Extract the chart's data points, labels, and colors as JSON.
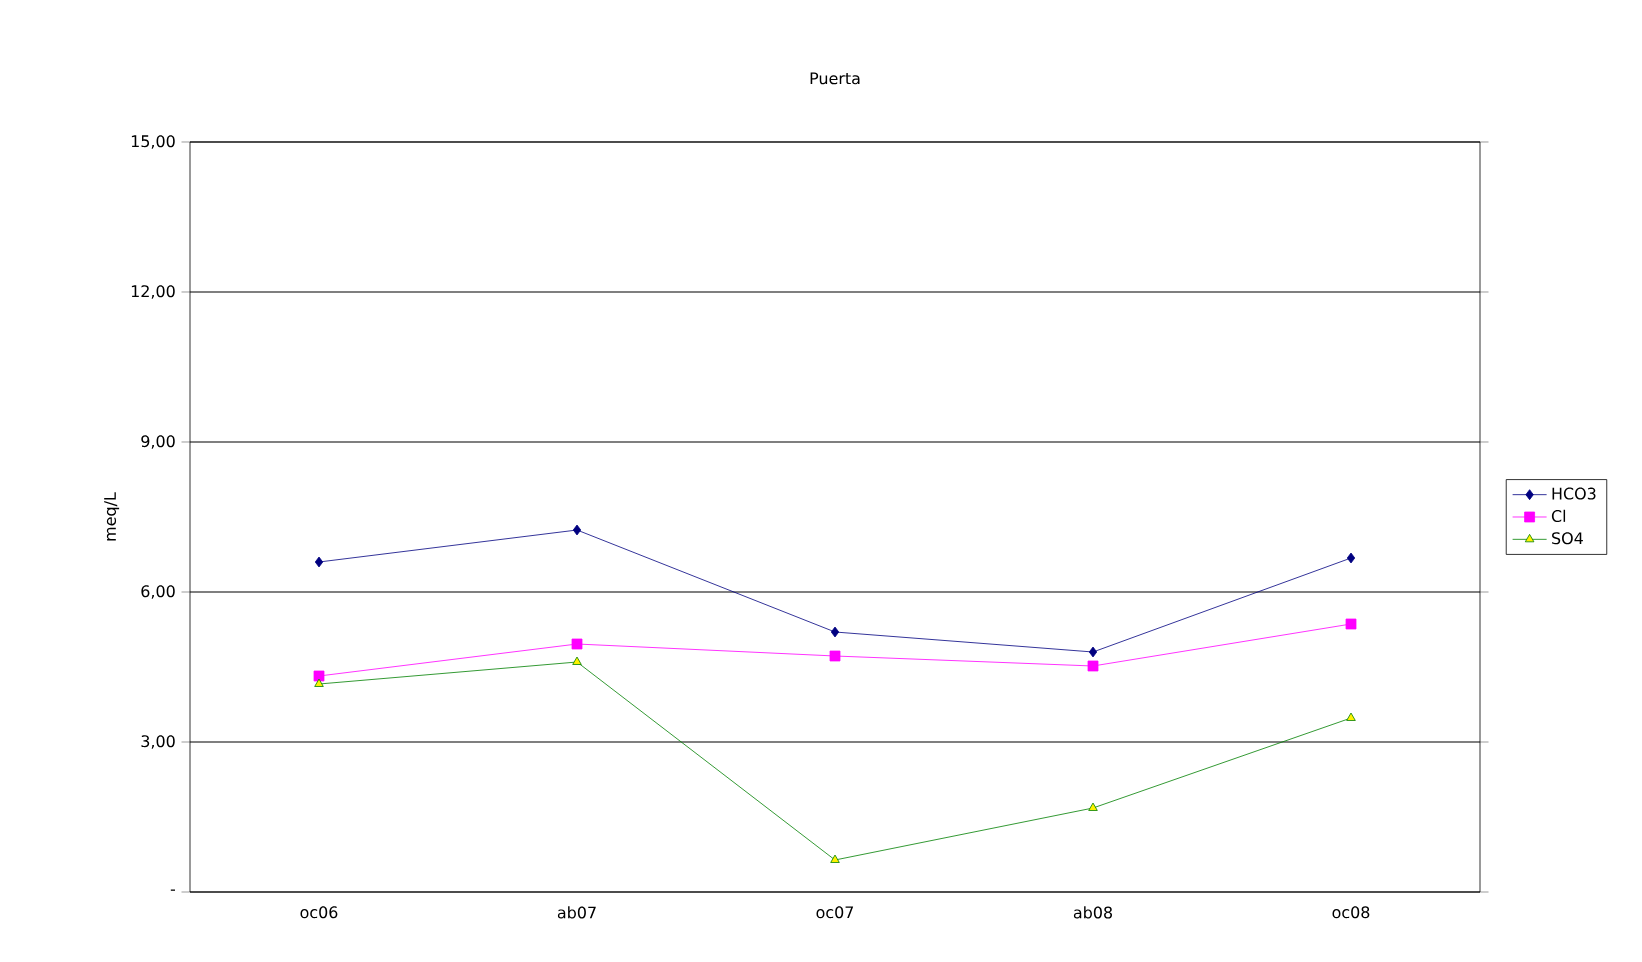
{
  "chart_data": {
    "type": "line",
    "title": "Puerta",
    "ylabel": "meq/L",
    "categories": [
      "oc06",
      "ab07",
      "oc07",
      "ab08",
      "oc08"
    ],
    "series": [
      {
        "name": "HCO3",
        "color": "#000080",
        "marker": "diamond",
        "values": [
          6.6,
          7.24,
          5.2,
          4.8,
          6.68
        ]
      },
      {
        "name": "Cl",
        "color": "#ff00ff",
        "marker": "square",
        "values": [
          4.32,
          4.96,
          4.72,
          4.52,
          5.36
        ]
      },
      {
        "name": "SO4",
        "color": "#008000",
        "marker": "triangle",
        "values": [
          4.16,
          4.6,
          0.64,
          1.68,
          3.48
        ]
      }
    ],
    "ylim": [
      0,
      15
    ],
    "yticks": [
      {
        "value": 0,
        "label": "-"
      },
      {
        "value": 3,
        "label": "3,00"
      },
      {
        "value": 6,
        "label": "6,00"
      },
      {
        "value": 9,
        "label": "9,00"
      },
      {
        "value": 12,
        "label": "12,00"
      },
      {
        "value": 15,
        "label": "15,00"
      }
    ],
    "grid": "y",
    "legend": "right",
    "line_style": "solid"
  }
}
